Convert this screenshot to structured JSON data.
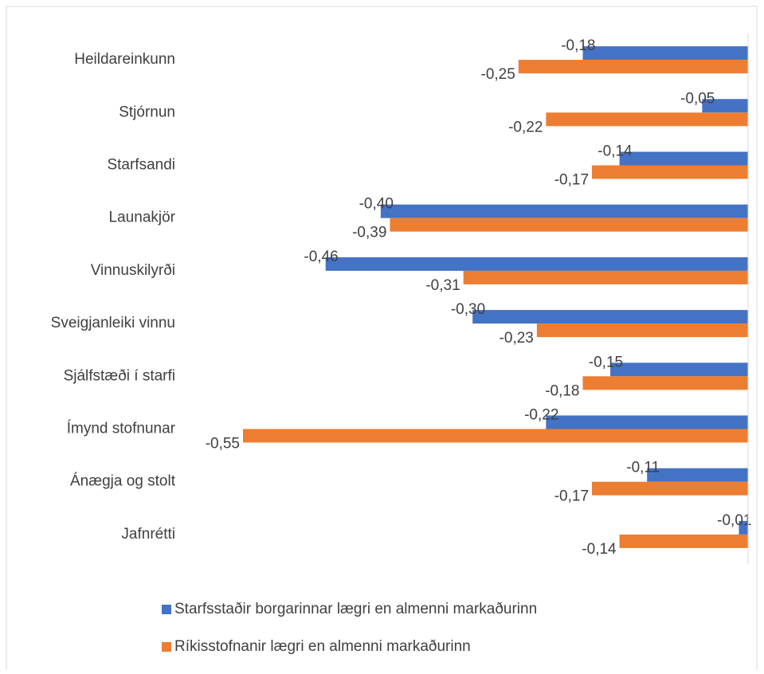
{
  "chart_data": {
    "type": "barh",
    "categories": [
      "Heildareinkunn",
      "Stjórnun",
      "Starfsandi",
      "Launakjör",
      "Vinnuskilyrði",
      "Sveigjanleiki vinnu",
      "Sjálfstæði í starfi",
      "Ímynd stofnunar",
      "Ánægja og stolt",
      "Jafnrétti"
    ],
    "series": [
      {
        "name": "Starfsstaðir borgarinnar lægri en almenni markaðurinn",
        "color": "#4472c4",
        "values": [
          -0.18,
          -0.05,
          -0.14,
          -0.4,
          -0.46,
          -0.3,
          -0.15,
          -0.22,
          -0.11,
          -0.01
        ],
        "value_labels": [
          "-0,18",
          "-0,05",
          "-0,14",
          "-0,40",
          "-0,46",
          "-0,30",
          "-0,15",
          "-0,22",
          "-0,11",
          "-0,01"
        ]
      },
      {
        "name": "Ríkisstofnanir lægri en almenni markaðurinn",
        "color": "#ed7d31",
        "values": [
          -0.25,
          -0.22,
          -0.17,
          -0.39,
          -0.31,
          -0.23,
          -0.18,
          -0.55,
          -0.17,
          -0.14
        ],
        "value_labels": [
          "-0,25",
          "-0,22",
          "-0,17",
          "-0,39",
          "-0,31",
          "-0,23",
          "-0,18",
          "-0,55",
          "-0,17",
          "-0,14"
        ]
      }
    ],
    "xlim": [
      -0.55,
      0
    ],
    "legend": "bottom"
  }
}
